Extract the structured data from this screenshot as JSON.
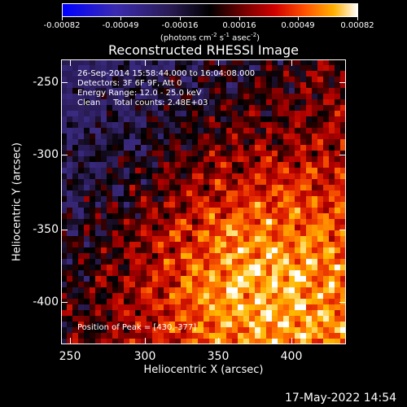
{
  "colorbar": {
    "ticks": [
      "-0.00082",
      "-0.00049",
      "-0.00016",
      "0.00016",
      "0.00049",
      "0.00082"
    ],
    "units_prefix": "(photons cm",
    "units_exp1": "-2",
    "units_mid1": " s",
    "units_exp2": "-1",
    "units_mid2": " asec",
    "units_exp3": "-2",
    "units_suffix": ")"
  },
  "title": "Reconstructed RHESSI Image",
  "info": {
    "time_range": "26-Sep-2014 15:58:44.000 to 16:04:08.000",
    "detectors": "Detectors: 3F 6F 9F, Att 0",
    "energy": "Energy Range: 12.0 - 25.0 keV",
    "method": "Clean     Total counts: 2.48E+03",
    "peak": "Position of Peak = [430,-377]"
  },
  "axes": {
    "xlabel": "Heliocentric X (arcsec)",
    "ylabel": "Heliocentric Y (arcsec)",
    "xticks": [
      "250",
      "300",
      "350",
      "400"
    ],
    "yticks": [
      "-250",
      "-300",
      "-350",
      "-400"
    ],
    "xlim": [
      245,
      435
    ],
    "ylim": [
      -430,
      -240
    ]
  },
  "datestamp": "17-May-2022 14:54",
  "colors": {
    "colormap": [
      "#0000ff",
      "#4a2ca8",
      "#241a40",
      "#000000",
      "#3a0000",
      "#8b0000",
      "#d40000",
      "#ff4a00",
      "#ffa000",
      "#ffe060",
      "#ffffff"
    ]
  }
}
